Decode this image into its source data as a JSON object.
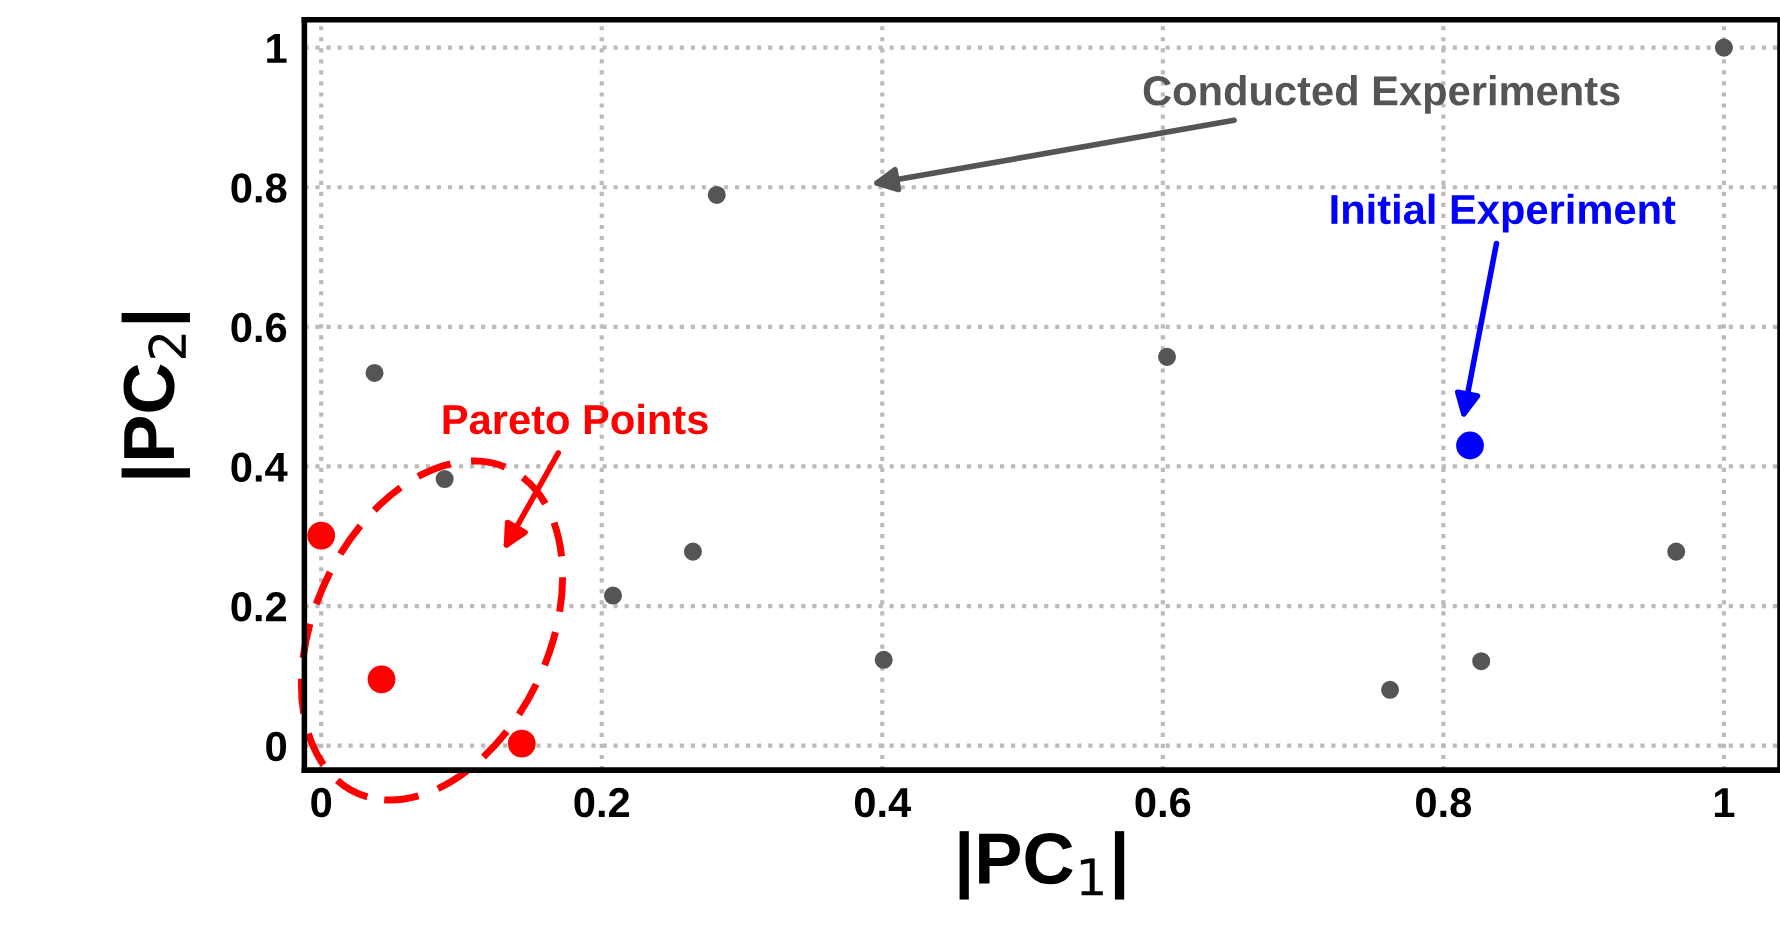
{
  "chart_data": {
    "type": "scatter",
    "xlabel": "|PC$_{1}$|",
    "ylabel": "|PC$_{2}$|",
    "xlim": [
      -0.012,
      1.04
    ],
    "ylim": [
      -0.035,
      1.04
    ],
    "xticks": [
      0,
      0.2,
      0.4,
      0.6,
      0.8,
      1
    ],
    "yticks": [
      0,
      0.2,
      0.4,
      0.6,
      0.8,
      1
    ],
    "grid": true,
    "marker": "circle",
    "series": [
      {
        "name": "Conducted Experiments",
        "color": "#555555",
        "x": [
          0.038,
          0.088,
          0.208,
          0.265,
          0.282,
          0.401,
          0.603,
          0.762,
          0.827,
          0.966,
          1.0
        ],
        "values": [
          0.534,
          0.382,
          0.215,
          0.278,
          0.789,
          0.123,
          0.557,
          0.08,
          0.121,
          0.278,
          1.0
        ]
      },
      {
        "name": "Initial Experiment",
        "color": "#0000ff",
        "x": [
          0.819
        ],
        "values": [
          0.43
        ]
      },
      {
        "name": "Pareto Points",
        "color": "#ff0000",
        "x": [
          0.0,
          0.043,
          0.143
        ],
        "values": [
          0.301,
          0.095,
          0.003
        ]
      }
    ]
  }
}
